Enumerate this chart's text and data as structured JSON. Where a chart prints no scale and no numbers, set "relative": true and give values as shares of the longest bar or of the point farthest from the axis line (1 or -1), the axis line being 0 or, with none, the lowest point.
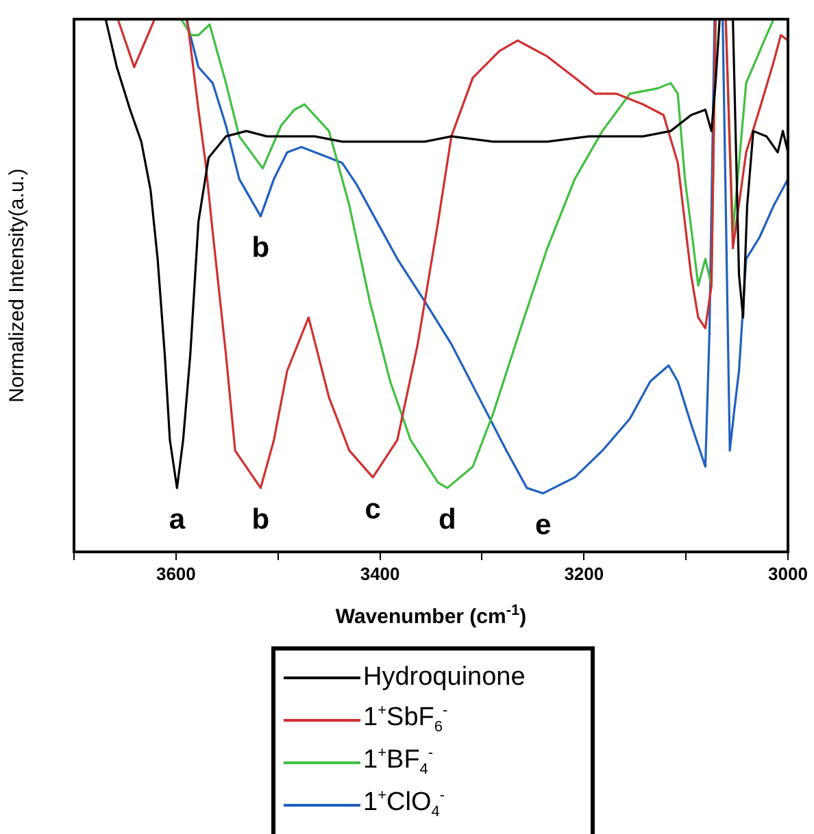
{
  "chart_data": {
    "type": "line",
    "xlabel": "Wavenumber (cm$^{-1}$)",
    "ylabel": "Normalized Intensity(a.u.)",
    "relative": true,
    "xlim": [
      3700,
      3000
    ],
    "xticks": [
      {
        "value": 3700,
        "label": null
      },
      3600,
      {
        "value": 3500,
        "label": null
      },
      3400,
      {
        "value": 3300,
        "label": null
      },
      3200,
      {
        "value": 3100,
        "label": null
      },
      3000
    ],
    "grid": false,
    "legend": "bottom",
    "marker": "none",
    "line_style": "solid",
    "series": [
      {
        "name": "Hydroquinone",
        "color": "#000000",
        "x": [
          3669,
          3658,
          3645,
          3634,
          3625,
          3618,
          3611,
          3606,
          3599,
          3593,
          3586,
          3578,
          3568,
          3551,
          3531,
          3511,
          3491,
          3464,
          3437,
          3397,
          3356,
          3330,
          3289,
          3236,
          3195,
          3142,
          3115,
          3095,
          3081,
          3075,
          3071,
          3067,
          3054,
          3048,
          3044,
          3040,
          3034,
          3021,
          3010,
          3005,
          3000
        ],
        "values": [
          1.0,
          0.91,
          0.83,
          0.77,
          0.68,
          0.55,
          0.37,
          0.21,
          0.12,
          0.21,
          0.37,
          0.62,
          0.74,
          0.78,
          0.79,
          0.78,
          0.78,
          0.78,
          0.77,
          0.77,
          0.77,
          0.78,
          0.77,
          0.77,
          0.78,
          0.78,
          0.79,
          0.82,
          0.83,
          0.79,
          0.88,
          1.0,
          1.0,
          0.52,
          0.44,
          0.65,
          0.79,
          0.78,
          0.75,
          0.79,
          0.75
        ]
      },
      {
        "name": "1$^{+}$SbF$_{6}$$^{-}$",
        "color": "#d03030",
        "x": [
          3657,
          3641,
          3621,
          3605,
          3589,
          3578,
          3571,
          3564,
          3551,
          3542,
          3517,
          3504,
          3491,
          3470,
          3450,
          3430,
          3407,
          3383,
          3363,
          3343,
          3330,
          3309,
          3283,
          3265,
          3236,
          3209,
          3189,
          3168,
          3142,
          3122,
          3108,
          3095,
          3088,
          3081,
          3075,
          3071,
          3061,
          3054,
          3041,
          3028,
          3014,
          3007,
          3000
        ],
        "values": [
          1.0,
          0.91,
          1.0,
          null,
          1.0,
          0.83,
          0.73,
          0.6,
          0.37,
          0.19,
          0.12,
          0.21,
          0.34,
          0.44,
          0.29,
          0.19,
          0.14,
          0.21,
          0.39,
          0.62,
          0.78,
          0.89,
          0.94,
          0.96,
          0.93,
          0.89,
          0.86,
          0.86,
          0.84,
          0.82,
          0.73,
          0.52,
          0.44,
          0.42,
          0.5,
          1.0,
          1.0,
          0.57,
          0.75,
          0.83,
          0.92,
          0.97,
          0.96
        ]
      },
      {
        "name": "1$^{+}$BF$_{4}$$^{-}$",
        "color": "#40c040",
        "x": [
          3595,
          3585,
          3578,
          3567,
          3551,
          3538,
          3515,
          3497,
          3484,
          3474,
          3450,
          3430,
          3410,
          3390,
          3370,
          3343,
          3334,
          3309,
          3289,
          3262,
          3236,
          3209,
          3182,
          3155,
          3128,
          3115,
          3108,
          3101,
          3095,
          3088,
          3081,
          3075,
          3071,
          3061,
          3054,
          3041,
          3021,
          3014
        ],
        "values": [
          1.0,
          0.97,
          0.97,
          0.99,
          0.88,
          0.78,
          0.72,
          0.8,
          0.83,
          0.84,
          0.79,
          0.65,
          0.47,
          0.32,
          0.21,
          0.13,
          0.12,
          0.16,
          0.26,
          0.42,
          0.57,
          0.7,
          0.79,
          0.86,
          0.87,
          0.88,
          0.86,
          0.7,
          0.61,
          0.5,
          0.55,
          0.5,
          1.0,
          1.0,
          0.6,
          0.88,
          0.97,
          1.0
        ]
      },
      {
        "name": "1$^{+}$ClO$_{4}$$^{-}$",
        "color": "#2060c0",
        "x": [
          3590,
          3578,
          3564,
          3551,
          3538,
          3517,
          3504,
          3491,
          3477,
          3450,
          3437,
          3423,
          3403,
          3383,
          3356,
          3330,
          3303,
          3276,
          3256,
          3240,
          3209,
          3182,
          3155,
          3135,
          3117,
          3108,
          3095,
          3081,
          3077,
          3072,
          3064,
          3057,
          3053,
          3048,
          3041,
          3028,
          3014,
          3000
        ],
        "values": [
          1.0,
          0.91,
          0.88,
          0.8,
          0.7,
          0.63,
          0.7,
          0.75,
          0.76,
          0.74,
          0.73,
          0.69,
          0.62,
          0.55,
          0.47,
          0.39,
          0.29,
          0.19,
          0.12,
          0.11,
          0.14,
          0.19,
          0.25,
          0.32,
          0.35,
          0.32,
          0.24,
          0.16,
          0.41,
          1.0,
          1.0,
          0.19,
          0.26,
          0.34,
          0.55,
          0.59,
          0.65,
          0.7
        ]
      }
    ],
    "annotations": [
      {
        "text": "a",
        "x": 3599,
        "y": 0.12
      },
      {
        "text": "b",
        "x": 3517,
        "y": 0.12
      },
      {
        "text": "c",
        "x": 3407,
        "y": 0.14
      },
      {
        "text": "d",
        "x": 3334,
        "y": 0.12
      },
      {
        "text": "e",
        "x": 3240,
        "y": 0.11
      },
      {
        "text": "b",
        "x": 3517,
        "y": 0.63
      }
    ]
  }
}
